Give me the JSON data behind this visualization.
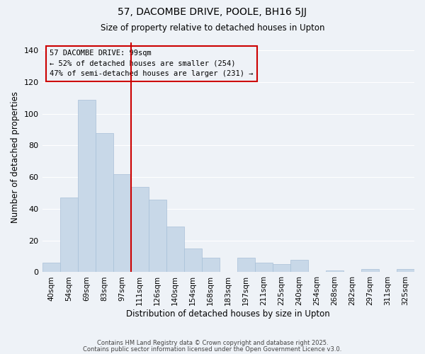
{
  "title1": "57, DACOMBE DRIVE, POOLE, BH16 5JJ",
  "title2": "Size of property relative to detached houses in Upton",
  "xlabel": "Distribution of detached houses by size in Upton",
  "ylabel": "Number of detached properties",
  "categories": [
    "40sqm",
    "54sqm",
    "69sqm",
    "83sqm",
    "97sqm",
    "111sqm",
    "126sqm",
    "140sqm",
    "154sqm",
    "168sqm",
    "183sqm",
    "197sqm",
    "211sqm",
    "225sqm",
    "240sqm",
    "254sqm",
    "268sqm",
    "282sqm",
    "297sqm",
    "311sqm",
    "325sqm"
  ],
  "values": [
    6,
    47,
    109,
    88,
    62,
    54,
    46,
    29,
    15,
    9,
    0,
    9,
    6,
    5,
    8,
    0,
    1,
    0,
    2,
    0,
    2
  ],
  "bar_color": "#c8d8e8",
  "bar_edge_color": "#a8c0d8",
  "highlight_color": "#cc0000",
  "annotation_title": "57 DACOMBE DRIVE: 99sqm",
  "annotation_line1": "← 52% of detached houses are smaller (254)",
  "annotation_line2": "47% of semi-detached houses are larger (231) →",
  "annotation_box_edge": "#cc0000",
  "ylim": [
    0,
    145
  ],
  "yticks": [
    0,
    20,
    40,
    60,
    80,
    100,
    120,
    140
  ],
  "footer1": "Contains HM Land Registry data © Crown copyright and database right 2025.",
  "footer2": "Contains public sector information licensed under the Open Government Licence v3.0.",
  "background_color": "#eef2f7",
  "bar_width": 1.0,
  "vline_x": 4.5
}
